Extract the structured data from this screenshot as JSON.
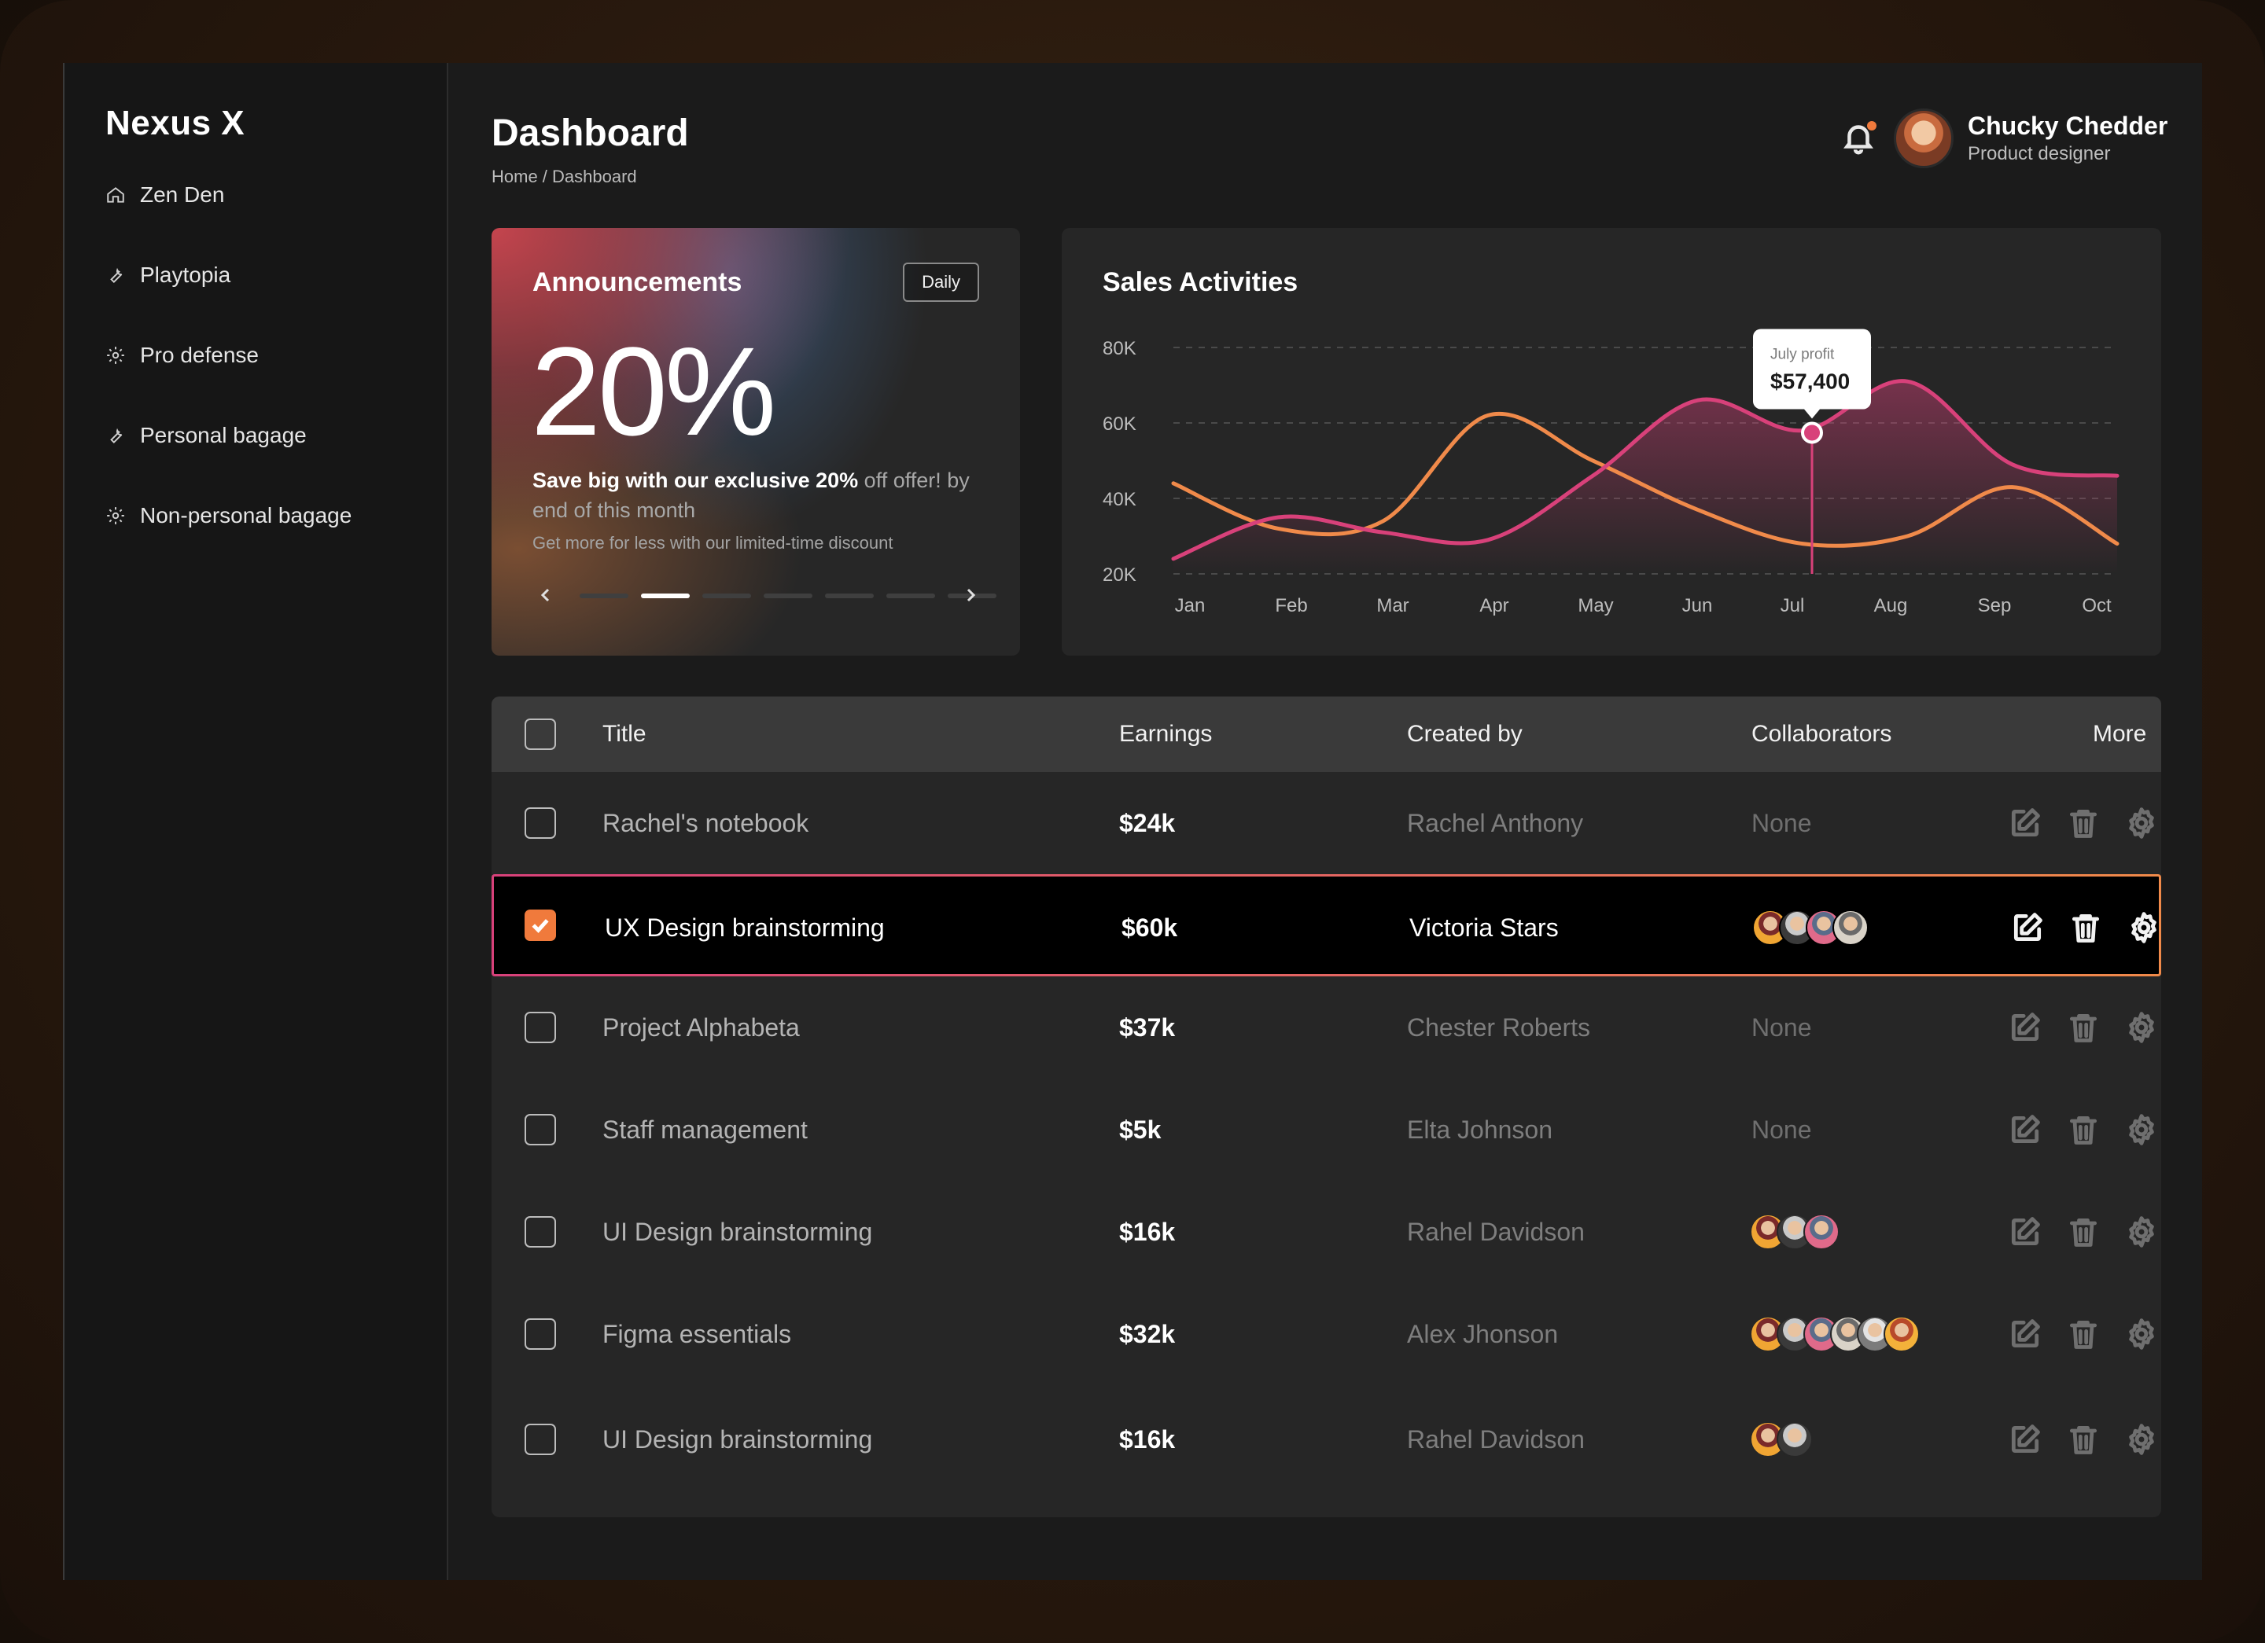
{
  "brand": "Nexus X",
  "sidebar": {
    "items": [
      {
        "label": "Zen Den",
        "icon": "home-icon"
      },
      {
        "label": "Playtopia",
        "icon": "wrench-icon"
      },
      {
        "label": "Pro defense",
        "icon": "gear-icon"
      },
      {
        "label": "Personal bagage",
        "icon": "wrench-icon"
      },
      {
        "label": "Non-personal bagage",
        "icon": "gear-icon"
      }
    ]
  },
  "header": {
    "title": "Dashboard",
    "breadcrumb": "Home / Dashboard",
    "user": {
      "name": "Chucky Chedder",
      "role": "Product designer"
    },
    "notification_dot_color": "#f07a3c"
  },
  "announcements": {
    "title": "Announcements",
    "filter": "Daily",
    "headline": "20%",
    "text_bold": "Save big with our exclusive 20%",
    "text_rest": " off offer! by end of this month",
    "subtext": "Get more for less with our limited-time discount",
    "active_slide": 2,
    "slide_count": 7
  },
  "sales": {
    "title": "Sales Activities",
    "tooltip": {
      "label": "July profit",
      "value": "$57,400"
    }
  },
  "chart_data": {
    "type": "line",
    "x": [
      "Jan",
      "Feb",
      "Mar",
      "Apr",
      "May",
      "Jun",
      "Jul",
      "Aug",
      "Sep",
      "Oct"
    ],
    "y_ticks": [
      "80K",
      "60K",
      "40K",
      "20K"
    ],
    "ylim": [
      20000,
      80000
    ],
    "series": [
      {
        "color": "#d8417a",
        "values": [
          24000,
          35000,
          31000,
          29000,
          46000,
          66000,
          58000,
          71000,
          49000,
          46000
        ]
      },
      {
        "color": "#f08a4a",
        "values": [
          44000,
          32000,
          34000,
          62000,
          50000,
          37000,
          28000,
          30000,
          43000,
          28000
        ]
      }
    ],
    "highlight": {
      "x": "Jul",
      "value": 57400
    }
  },
  "table": {
    "columns": [
      "Title",
      "Earnings",
      "Created by",
      "Collaborators",
      "More"
    ],
    "rows": [
      {
        "title": "Rachel's notebook",
        "earnings": "$24k",
        "created_by": "Rachel Anthony",
        "collaborators": "None",
        "avatars": 0,
        "selected": false
      },
      {
        "title": "UX Design brainstorming",
        "earnings": "$60k",
        "created_by": "Victoria Stars",
        "collaborators": "",
        "avatars": 4,
        "selected": true
      },
      {
        "title": "Project Alphabeta",
        "earnings": "$37k",
        "created_by": "Chester Roberts",
        "collaborators": "None",
        "avatars": 0,
        "selected": false
      },
      {
        "title": "Staff management",
        "earnings": "$5k",
        "created_by": "Elta Johnson",
        "collaborators": "None",
        "avatars": 0,
        "selected": false
      },
      {
        "title": "UI Design brainstorming",
        "earnings": "$16k",
        "created_by": "Rahel Davidson",
        "collaborators": "",
        "avatars": 3,
        "selected": false
      },
      {
        "title": "Figma essentials",
        "earnings": "$32k",
        "created_by": "Alex Jhonson",
        "collaborators": "",
        "avatars": 6,
        "selected": false
      },
      {
        "title": "UI Design brainstorming",
        "earnings": "$16k",
        "created_by": "Rahel Davidson",
        "collaborators": "",
        "avatars": 2,
        "selected": false
      }
    ]
  },
  "colors": {
    "accent_orange": "#f07a3c",
    "accent_pink": "#d8417a"
  }
}
